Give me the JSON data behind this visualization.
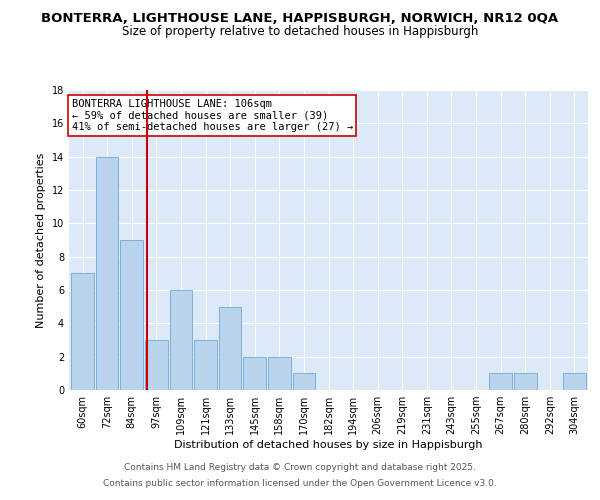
{
  "title1": "BONTERRA, LIGHTHOUSE LANE, HAPPISBURGH, NORWICH, NR12 0QA",
  "title2": "Size of property relative to detached houses in Happisburgh",
  "xlabel": "Distribution of detached houses by size in Happisburgh",
  "ylabel": "Number of detached properties",
  "categories": [
    "60sqm",
    "72sqm",
    "84sqm",
    "97sqm",
    "109sqm",
    "121sqm",
    "133sqm",
    "145sqm",
    "158sqm",
    "170sqm",
    "182sqm",
    "194sqm",
    "206sqm",
    "219sqm",
    "231sqm",
    "243sqm",
    "255sqm",
    "267sqm",
    "280sqm",
    "292sqm",
    "304sqm"
  ],
  "values": [
    7,
    14,
    9,
    3,
    6,
    3,
    5,
    2,
    2,
    1,
    0,
    0,
    0,
    0,
    0,
    0,
    0,
    1,
    1,
    0,
    1
  ],
  "bar_color": "#bad4ed",
  "bar_edge_color": "#6fa8d6",
  "vline_pos": 2.62,
  "annotation_line1": "BONTERRA LIGHTHOUSE LANE: 106sqm",
  "annotation_line2": "← 59% of detached houses are smaller (39)",
  "annotation_line3": "41% of semi-detached houses are larger (27) →",
  "ylim": [
    0,
    18
  ],
  "yticks": [
    0,
    2,
    4,
    6,
    8,
    10,
    12,
    14,
    16,
    18
  ],
  "footer1": "Contains HM Land Registry data © Crown copyright and database right 2025.",
  "footer2": "Contains public sector information licensed under the Open Government Licence v3.0.",
  "plot_bg_color": "#dce9f7",
  "title1_fontsize": 9.5,
  "title2_fontsize": 8.5,
  "axis_label_fontsize": 8,
  "tick_fontsize": 7,
  "footer_fontsize": 6.5,
  "annot_fontsize": 7.5
}
